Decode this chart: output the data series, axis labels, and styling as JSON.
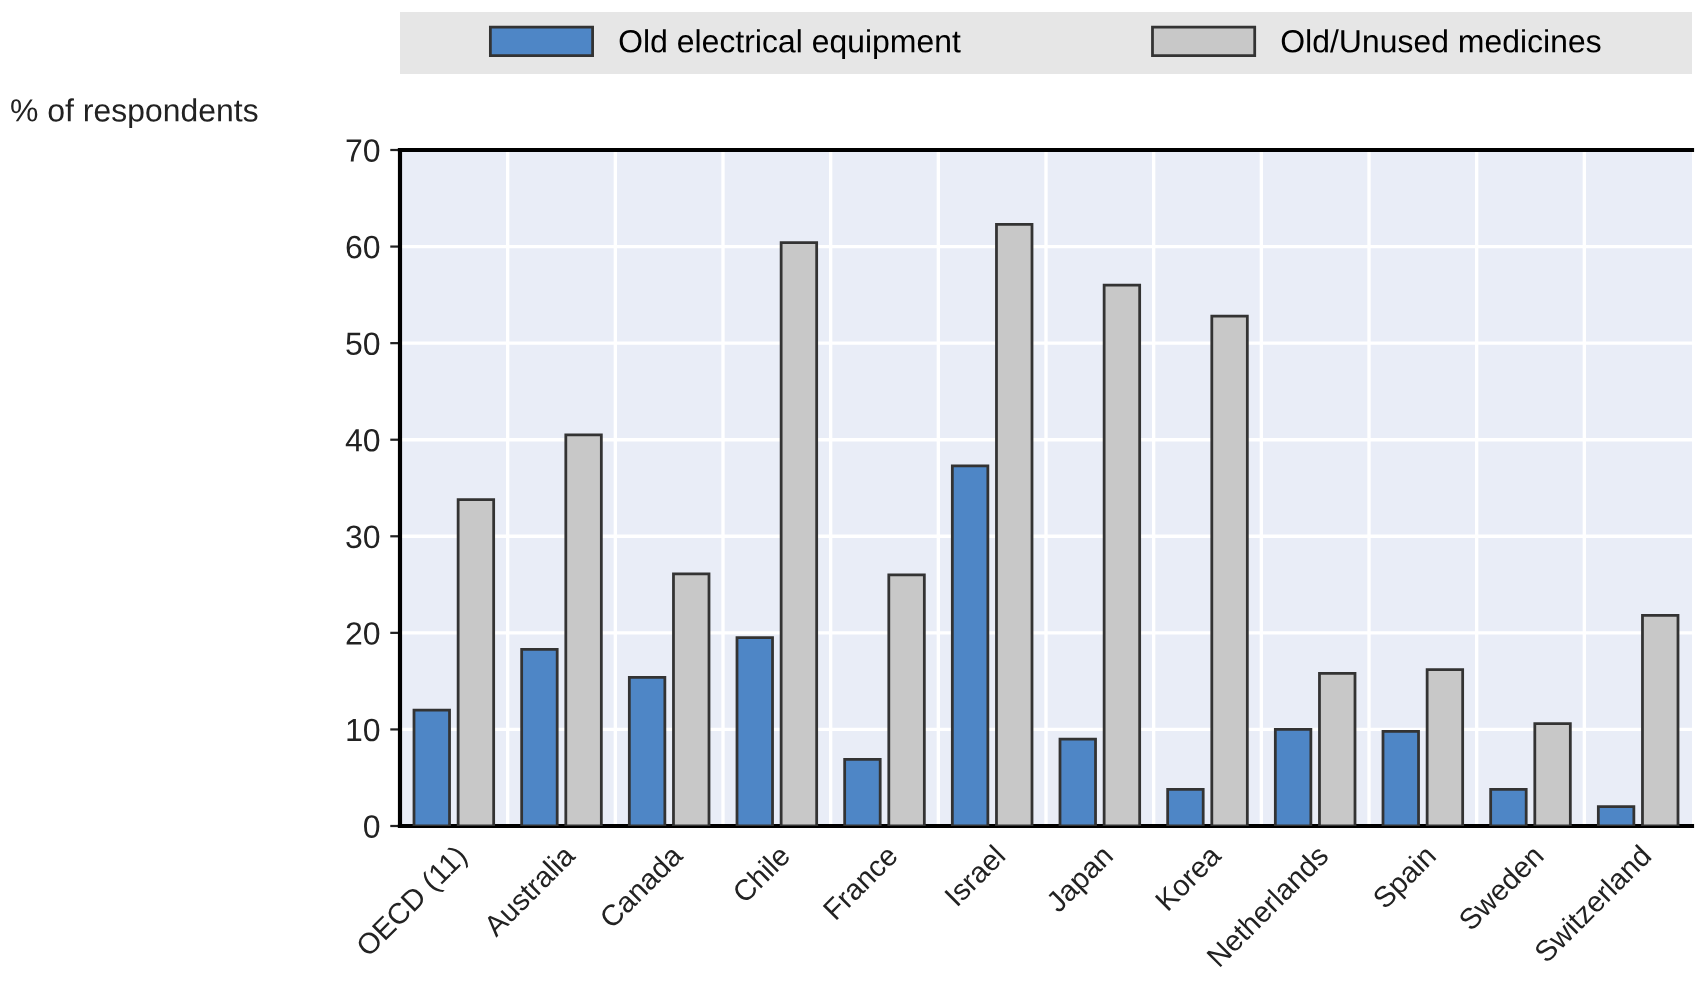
{
  "chart_data": {
    "type": "bar",
    "ylabel": "% of respondents",
    "categories": [
      "OECD (11)",
      "Australia",
      "Canada",
      "Chile",
      "France",
      "Israel",
      "Japan",
      "Korea",
      "Netherlands",
      "Spain",
      "Sweden",
      "Switzerland"
    ],
    "series": [
      {
        "name": "Old electrical equipment",
        "color": "#4e86c6",
        "values": [
          12.0,
          18.3,
          15.4,
          19.5,
          6.9,
          37.3,
          9.0,
          3.8,
          10.0,
          9.8,
          3.8,
          2.0
        ]
      },
      {
        "name": "Old/Unused medicines",
        "color": "#c8c8c8",
        "values": [
          33.8,
          40.5,
          26.1,
          60.4,
          26.0,
          62.3,
          56.0,
          52.8,
          15.8,
          16.2,
          10.6,
          21.8
        ]
      }
    ],
    "ylim": [
      0,
      70
    ],
    "yticks": [
      0,
      10,
      20,
      30,
      40,
      50,
      60,
      70
    ],
    "grid": true,
    "legend": "top"
  }
}
